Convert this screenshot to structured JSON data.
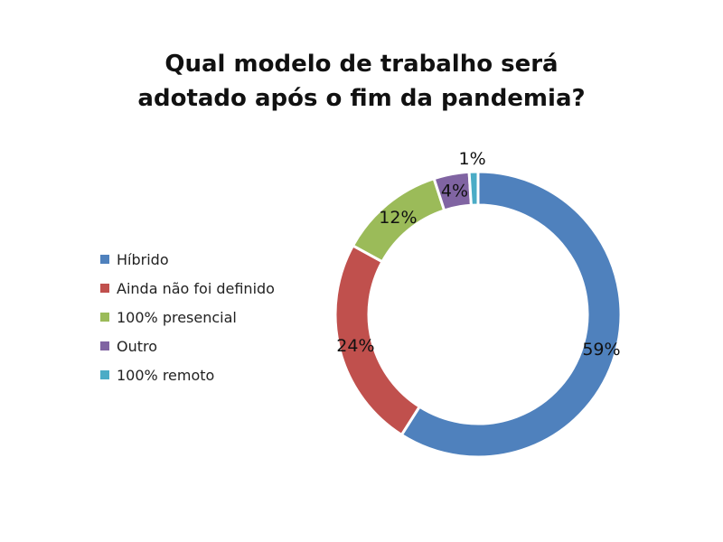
{
  "chart_data": {
    "type": "pie",
    "variant": "donut",
    "title_lines": [
      "Qual modelo de trabalho será",
      "adotado após o fim da pandemia?"
    ],
    "categories": [
      "Híbrido",
      "Ainda não foi definido",
      "100% presencial",
      "Outro",
      "100% remoto"
    ],
    "values": [
      59,
      24,
      12,
      4,
      1
    ],
    "data_labels": [
      "59%",
      "24%",
      "12%",
      "4%",
      "1%"
    ],
    "colors": [
      "#4F81BD",
      "#C0504D",
      "#9BBB59",
      "#8064A2",
      "#4BACC6"
    ],
    "legend_position": "left"
  }
}
